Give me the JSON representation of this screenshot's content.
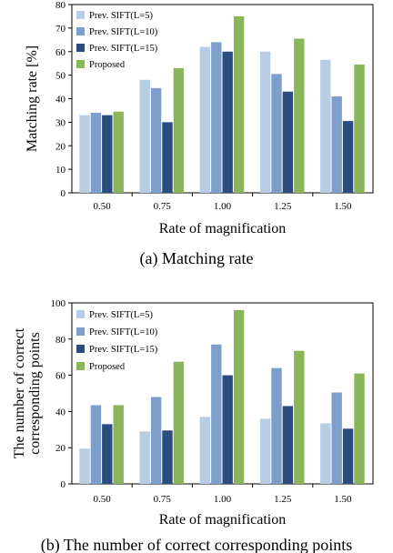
{
  "chart_data": [
    {
      "type": "bar",
      "caption": "(a) Matching rate",
      "xlabel": "Rate of magnification",
      "ylabel": "Matching rate [%]",
      "ylim": [
        0,
        80
      ],
      "yticks": [
        0,
        10,
        20,
        30,
        40,
        50,
        60,
        70,
        80
      ],
      "categories": [
        "0.50",
        "0.75",
        "1.00",
        "1.25",
        "1.50"
      ],
      "legend_position": "top-left",
      "grid": false,
      "series": [
        {
          "name": "Prev. SIFT(L=5)",
          "color": "#b7cde4",
          "values": [
            33,
            48,
            62,
            60,
            56.5
          ]
        },
        {
          "name": "Prev. SIFT(L=10)",
          "color": "#7e9fcb",
          "values": [
            34,
            44.5,
            64,
            50.5,
            41
          ]
        },
        {
          "name": "Prev. SIFT(L=15)",
          "color": "#2b4c7e",
          "values": [
            33,
            30,
            60,
            43,
            30.5
          ]
        },
        {
          "name": "Proposed",
          "color": "#8ab558",
          "values": [
            34.5,
            53,
            75,
            65.5,
            54.5
          ]
        }
      ]
    },
    {
      "type": "bar",
      "caption": "(b) The number of correct corresponding points",
      "xlabel": "Rate of magnification",
      "ylabel": [
        "The number of correct",
        "corresponding points"
      ],
      "ylim": [
        0,
        100
      ],
      "yticks": [
        0,
        20,
        40,
        60,
        80,
        100
      ],
      "categories": [
        "0.50",
        "0.75",
        "1.00",
        "1.25",
        "1.50"
      ],
      "legend_position": "top-left",
      "grid": false,
      "series": [
        {
          "name": "Prev. SIFT(L=5)",
          "color": "#b7cde4",
          "values": [
            19.5,
            29,
            37,
            36,
            33.5
          ]
        },
        {
          "name": "Prev. SIFT(L=10)",
          "color": "#7e9fcb",
          "values": [
            43.5,
            48,
            77,
            64,
            50.5
          ]
        },
        {
          "name": "Prev. SIFT(L=15)",
          "color": "#2b4c7e",
          "values": [
            33,
            29.5,
            60,
            43,
            30.5
          ]
        },
        {
          "name": "Proposed",
          "color": "#8ab558",
          "values": [
            43.5,
            67.5,
            96,
            73.5,
            61
          ]
        }
      ]
    }
  ]
}
